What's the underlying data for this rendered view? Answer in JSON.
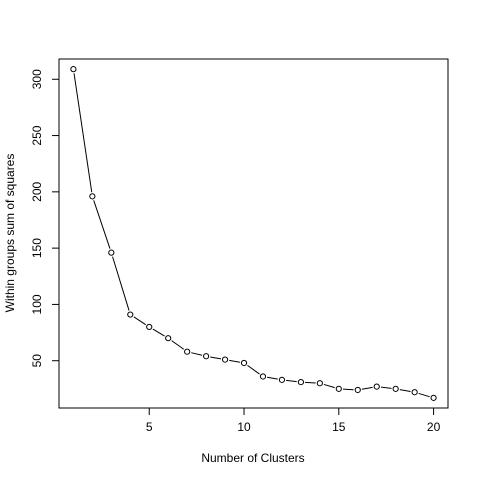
{
  "chart_data": {
    "type": "line",
    "title": "",
    "xlabel": "Number of Clusters",
    "ylabel": "Within groups sum of squares",
    "xlim": [
      0.24,
      20.76
    ],
    "ylim": [
      8,
      318
    ],
    "x_ticks": [
      5,
      10,
      15,
      20
    ],
    "y_ticks": [
      50,
      100,
      150,
      200,
      250,
      300
    ],
    "grid": false,
    "legend": "none",
    "line_color": "#000000",
    "point_style": "open-circle",
    "x": [
      1,
      2,
      3,
      4,
      5,
      6,
      7,
      8,
      9,
      10,
      11,
      12,
      13,
      14,
      15,
      16,
      17,
      18,
      19,
      20
    ],
    "y": [
      309,
      196,
      146,
      91,
      80,
      70,
      58,
      54,
      51,
      48,
      36,
      33,
      31,
      30,
      25,
      24,
      27,
      25,
      22,
      17
    ]
  }
}
